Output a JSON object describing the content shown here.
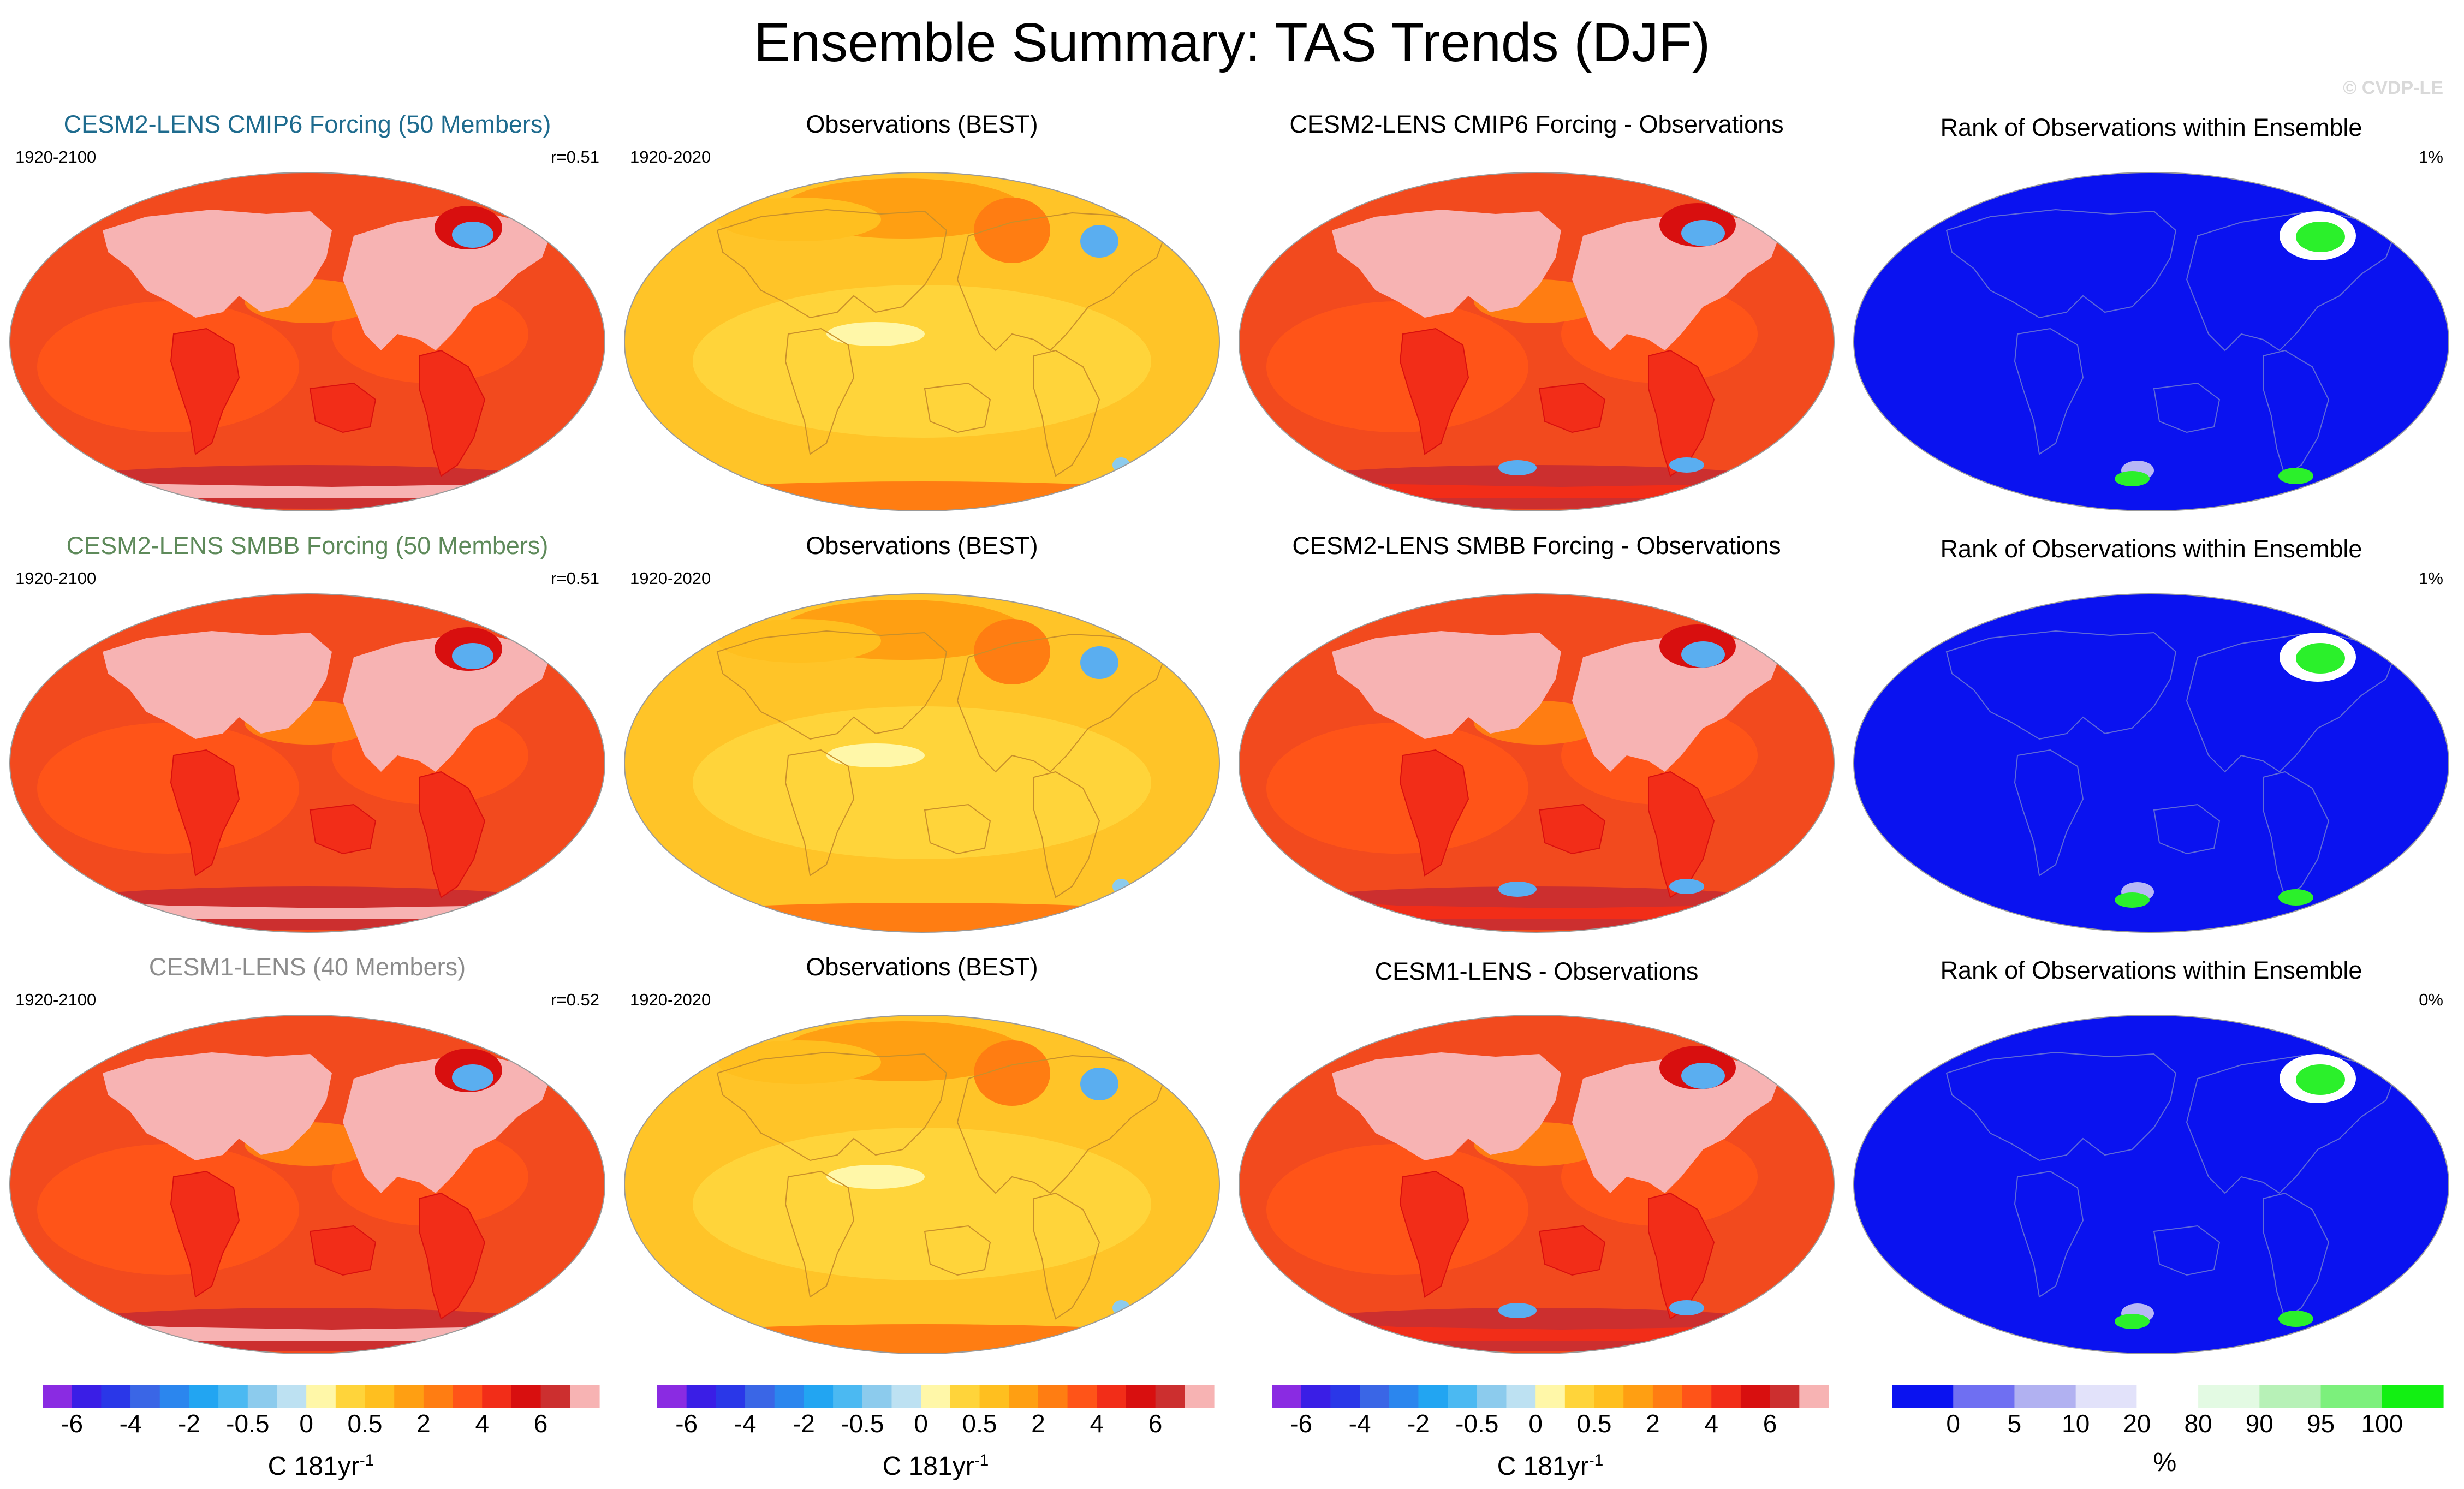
{
  "title": "Ensemble Summary: TAS Trends (DJF)",
  "watermark": "© CVDP-LE",
  "colors": {
    "model_title_cmip6": "#1e6b8e",
    "model_title_smbb": "#5e8a5a",
    "model_title_cesm1": "#8c8c8c",
    "ocean_model": "#f24a1e",
    "ocean_obs": "#ffc428",
    "ocean_rank": "#0a12f0",
    "land_pink": "#f7b3b3",
    "cool_blue": "#5aaef0",
    "rank_green": "#2bf02b"
  },
  "rows": [
    {
      "model": {
        "title": "CESM2-LENS CMIP6 Forcing (50 Members)",
        "period": "1920-2100",
        "corr": "r=0.51"
      },
      "obs": {
        "title": "Observations (BEST)",
        "period": "1920-2020"
      },
      "diff": {
        "title": "CESM2-LENS CMIP6 Forcing - Observations"
      },
      "rank": {
        "title": "Rank of Observations within Ensemble",
        "percent": "1%"
      }
    },
    {
      "model": {
        "title": "CESM2-LENS SMBB Forcing (50 Members)",
        "period": "1920-2100",
        "corr": "r=0.51"
      },
      "obs": {
        "title": "Observations (BEST)",
        "period": "1920-2020"
      },
      "diff": {
        "title": "CESM2-LENS SMBB Forcing - Observations"
      },
      "rank": {
        "title": "Rank of Observations within Ensemble",
        "percent": "1%"
      }
    },
    {
      "model": {
        "title": "CESM1-LENS (40 Members)",
        "period": "1920-2100",
        "corr": "r=0.52"
      },
      "obs": {
        "title": "Observations (BEST)",
        "period": "1920-2020"
      },
      "diff": {
        "title": "CESM1-LENS - Observations"
      },
      "rank": {
        "title": "Rank of Observations within Ensemble",
        "percent": "0%"
      }
    }
  ],
  "chart_data": {
    "type": "heatmap",
    "title": "Ensemble Summary: TAS Trends (DJF)",
    "projection": "global map (Robinson-style)",
    "trend_colorbar": {
      "levels": [
        -7,
        -6,
        -5,
        -4,
        -3,
        -2,
        -1,
        -0.5,
        -0.25,
        0,
        0.25,
        0.5,
        1,
        2,
        3,
        4,
        5,
        6,
        7
      ],
      "tick_labels": [
        "-6",
        "-4",
        "-2",
        "-0.5",
        "0",
        "0.5",
        "2",
        "4",
        "6"
      ],
      "colors": [
        "#8a2be2",
        "#3a1ee6",
        "#2a37e8",
        "#3a66e6",
        "#2b86ee",
        "#22a5f2",
        "#4bb9f2",
        "#8ccbed",
        "#bde1f2",
        "#fff7a8",
        "#ffd43a",
        "#ffbf1f",
        "#ff9f12",
        "#ff7d12",
        "#ff5418",
        "#f22d18",
        "#d80f0f",
        "#cc2f2f",
        "#f7b3b3"
      ],
      "unit_base": "C 181yr",
      "unit_exp": "-1"
    },
    "rank_colorbar": {
      "levels": [
        0,
        5,
        10,
        20,
        80,
        90,
        95,
        100
      ],
      "tick_labels": [
        "0",
        "5",
        "10",
        "20",
        "80",
        "90",
        "95",
        "100"
      ],
      "colors": [
        "#0a12f0",
        "#6f6ff2",
        "#b1b1f1",
        "#e2e2fa",
        "#ffffff",
        "#e3fae3",
        "#b7f1b7",
        "#7cf07c",
        "#12f012"
      ],
      "unit": "%"
    },
    "panels": [
      {
        "row": 1,
        "column": "model",
        "title": "CESM2-LENS CMIP6 Forcing (50 Members)",
        "period": "1920-2100",
        "r": 0.51
      },
      {
        "row": 1,
        "column": "obs",
        "title": "Observations (BEST)",
        "period": "1920-2020"
      },
      {
        "row": 1,
        "column": "diff",
        "title": "CESM2-LENS CMIP6 Forcing - Observations"
      },
      {
        "row": 1,
        "column": "rank",
        "title": "Rank of Observations within Ensemble",
        "percent": 1
      },
      {
        "row": 2,
        "column": "model",
        "title": "CESM2-LENS SMBB Forcing (50 Members)",
        "period": "1920-2100",
        "r": 0.51
      },
      {
        "row": 2,
        "column": "obs",
        "title": "Observations (BEST)",
        "period": "1920-2020"
      },
      {
        "row": 2,
        "column": "diff",
        "title": "CESM2-LENS SMBB Forcing - Observations"
      },
      {
        "row": 2,
        "column": "rank",
        "title": "Rank of Observations within Ensemble",
        "percent": 1
      },
      {
        "row": 3,
        "column": "model",
        "title": "CESM1-LENS (40 Members)",
        "period": "1920-2100",
        "r": 0.52
      },
      {
        "row": 3,
        "column": "obs",
        "title": "Observations (BEST)",
        "period": "1920-2020"
      },
      {
        "row": 3,
        "column": "diff",
        "title": "CESM1-LENS - Observations"
      },
      {
        "row": 3,
        "column": "rank",
        "title": "Rank of Observations within Ensemble",
        "percent": 0
      }
    ]
  }
}
